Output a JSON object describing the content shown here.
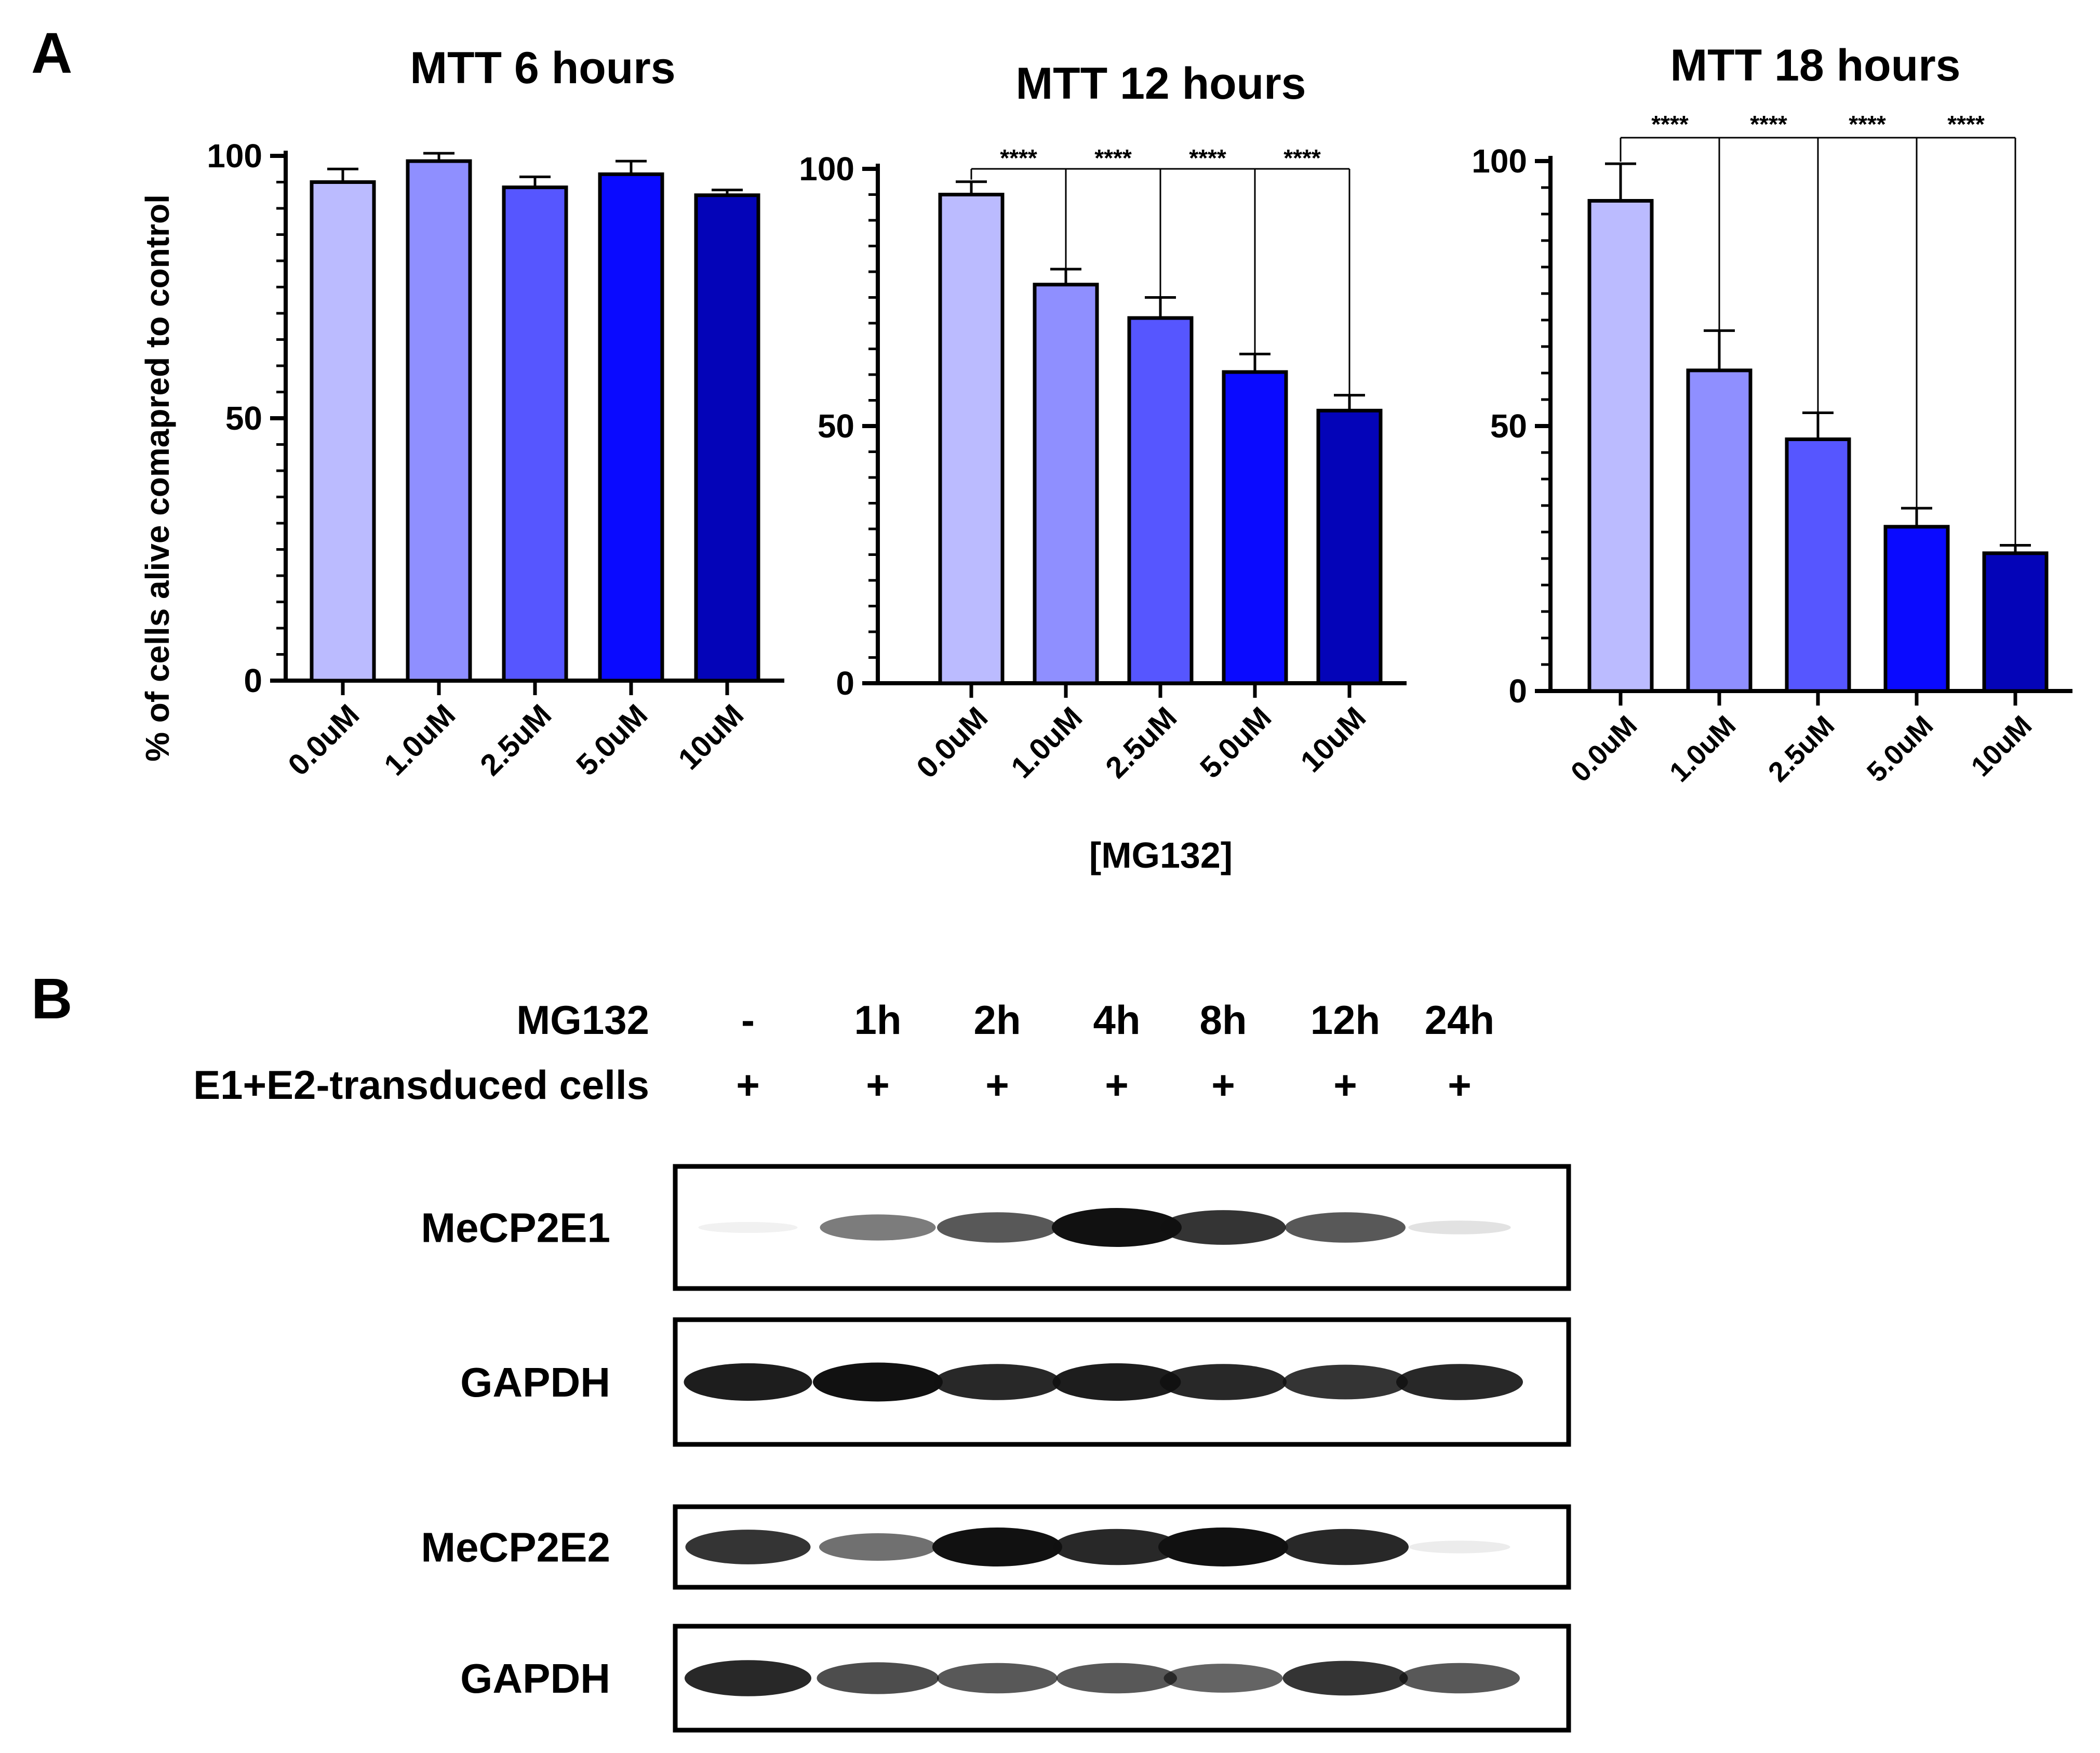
{
  "panel_a_label": "A",
  "panel_b_label": "B",
  "chart_data": [
    {
      "type": "bar",
      "title": "MTT 6 hours",
      "xlabel": "",
      "ylabel": "% of cells alive comapred to control",
      "ylim": [
        0,
        100
      ],
      "yticks": [
        "0",
        "50",
        "100"
      ],
      "categories": [
        "0.0uM",
        "1.0uM",
        "2.5uM",
        "5.0uM",
        "10uM"
      ],
      "values": [
        95,
        99,
        94,
        96.5,
        92.5
      ],
      "errors": [
        2.5,
        1.5,
        2,
        2.5,
        1
      ],
      "colors": [
        "#bbbbff",
        "#8f8fff",
        "#5656ff",
        "#0a0aff",
        "#0404b8"
      ],
      "significance": []
    },
    {
      "type": "bar",
      "title": "MTT 12 hours",
      "xlabel": "[MG132]",
      "ylabel": "",
      "ylim": [
        0,
        100
      ],
      "yticks": [
        "0",
        "50",
        "100"
      ],
      "categories": [
        "0.0uM",
        "1.0uM",
        "2.5uM",
        "5.0uM",
        "10uM"
      ],
      "values": [
        95,
        77.5,
        71,
        60.5,
        53
      ],
      "errors": [
        2.5,
        3,
        4,
        3.5,
        3
      ],
      "colors": [
        "#bbbbff",
        "#8f8fff",
        "#5656ff",
        "#0a0aff",
        "#0404b8"
      ],
      "significance": [
        "****",
        "****",
        "****",
        "****"
      ]
    },
    {
      "type": "bar",
      "title": "MTT 18 hours",
      "xlabel": "",
      "ylabel": "",
      "ylim": [
        0,
        100
      ],
      "yticks": [
        "0",
        "50",
        "100"
      ],
      "categories": [
        "0.0uM",
        "1.0uM",
        "2.5uM",
        "5.0uM",
        "10uM"
      ],
      "values": [
        92.5,
        60.5,
        47.5,
        31,
        26
      ],
      "errors": [
        7,
        7.5,
        5,
        3.5,
        1.5
      ],
      "colors": [
        "#bbbbff",
        "#8f8fff",
        "#5656ff",
        "#0a0aff",
        "#0404b8"
      ],
      "significance": [
        "****",
        "****",
        "****",
        "****"
      ]
    }
  ],
  "western_blot": {
    "row_labels": [
      "MG132",
      "E1+E2-transduced cells"
    ],
    "treatment": [
      "-",
      "1h",
      "2h",
      "4h",
      "8h",
      "12h",
      "24h"
    ],
    "transduced": [
      "+",
      "+",
      "+",
      "+",
      "+",
      "+",
      "+"
    ],
    "blots": [
      {
        "label": "MeCP2E1",
        "intensity": [
          0.02,
          0.55,
          0.7,
          1.0,
          0.85,
          0.7,
          0.12
        ]
      },
      {
        "label": "GAPDH",
        "intensity": [
          0.95,
          1.0,
          0.9,
          0.95,
          0.9,
          0.85,
          0.9
        ]
      },
      {
        "label": "MeCP2E2",
        "intensity": [
          0.85,
          0.6,
          1.0,
          0.9,
          1.0,
          0.9,
          0.08
        ]
      },
      {
        "label": "GAPDH",
        "intensity": [
          0.9,
          0.75,
          0.7,
          0.7,
          0.65,
          0.85,
          0.7
        ]
      }
    ]
  }
}
